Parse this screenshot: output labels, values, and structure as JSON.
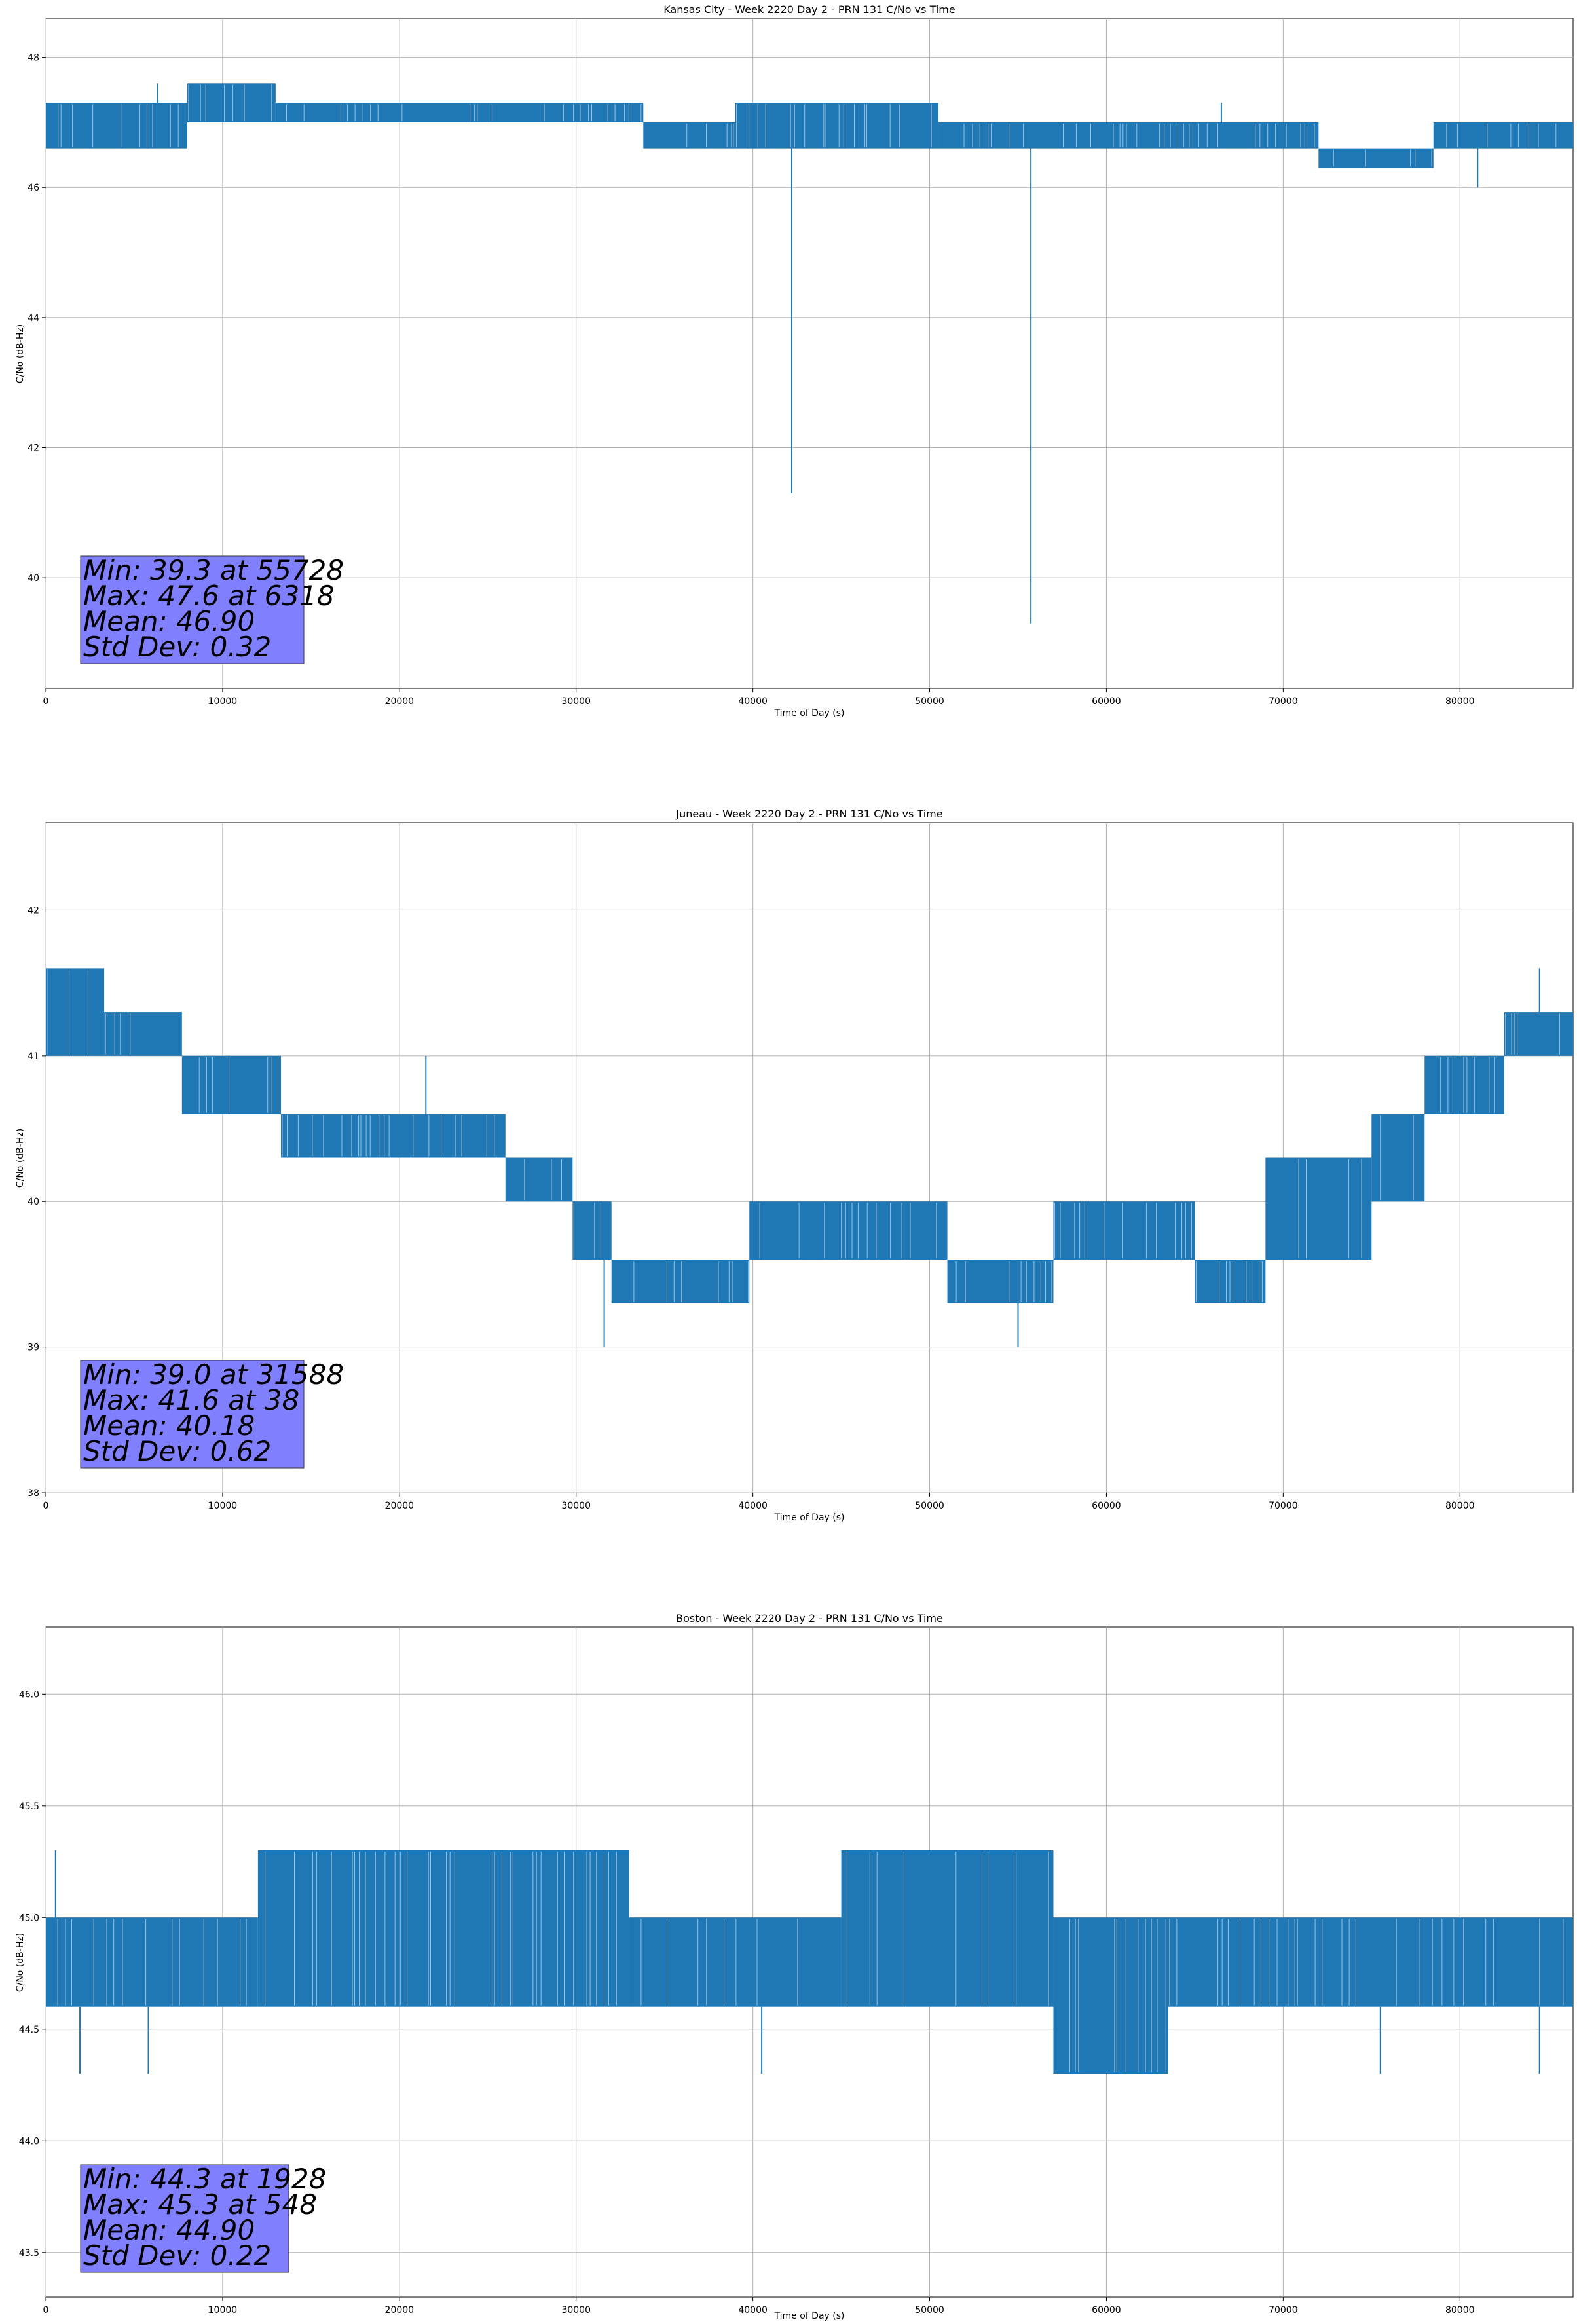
{
  "chart_data": [
    {
      "type": "line",
      "title": "Kansas City - Week 2220 Day 2 - PRN 131 C/No vs Time",
      "xlabel": "Time of Day (s)",
      "ylabel": "C/No (dB-Hz)",
      "xlim": [
        0,
        86400
      ],
      "ylim": [
        38.3,
        48.6
      ],
      "xticks": [
        0,
        10000,
        20000,
        30000,
        40000,
        50000,
        60000,
        70000,
        80000
      ],
      "yticks": [
        40,
        42,
        44,
        46,
        48
      ],
      "ytick_decimals": 0,
      "grid": true,
      "color": "#1f77b4",
      "stats": [
        "Min: 39.3 at 55728",
        "Max: 47.6 at 6318",
        "Mean: 46.90",
        "Std Dev: 0.32"
      ],
      "stats_box": {
        "color": "#8080ff",
        "placement": "bottom-left"
      },
      "series": [
        {
          "segments": [
            {
              "x": [
                0,
                8000
              ],
              "low": 46.6,
              "high": 47.3
            },
            {
              "x": [
                8000,
                13000
              ],
              "low": 47.0,
              "high": 47.6
            },
            {
              "x": [
                13000,
                33800
              ],
              "low": 47.0,
              "high": 47.3
            },
            {
              "x": [
                33800,
                39000
              ],
              "low": 46.6,
              "high": 47.0
            },
            {
              "x": [
                39000,
                50500
              ],
              "low": 46.6,
              "high": 47.3
            },
            {
              "x": [
                50500,
                52000
              ],
              "low": 46.6,
              "high": 47.0
            },
            {
              "x": [
                52000,
                72000
              ],
              "low": 46.6,
              "high": 47.0
            },
            {
              "x": [
                72000,
                78500
              ],
              "low": 46.3,
              "high": 46.6
            },
            {
              "x": [
                78500,
                86400
              ],
              "low": 46.6,
              "high": 47.0
            }
          ],
          "outliers": [
            {
              "x": 6318,
              "y": 47.6
            },
            {
              "x": 42200,
              "y": 41.3
            },
            {
              "x": 55728,
              "y": 39.3
            },
            {
              "x": 66500,
              "y": 47.3
            },
            {
              "x": 81000,
              "y": 46.0
            }
          ]
        }
      ]
    },
    {
      "type": "line",
      "title": "Juneau - Week 2220 Day 2 - PRN 131 C/No vs Time",
      "xlabel": "Time of Day (s)",
      "ylabel": "C/No (dB-Hz)",
      "xlim": [
        0,
        86400
      ],
      "ylim": [
        38.0,
        42.6
      ],
      "xticks": [
        0,
        10000,
        20000,
        30000,
        40000,
        50000,
        60000,
        70000,
        80000
      ],
      "yticks": [
        38,
        39,
        40,
        41,
        42
      ],
      "ytick_decimals": 0,
      "grid": true,
      "color": "#1f77b4",
      "stats": [
        "Min: 39.0 at 31588",
        "Max: 41.6 at 38",
        "Mean: 40.18",
        "Std Dev: 0.62"
      ],
      "stats_box": {
        "color": "#8080ff",
        "placement": "bottom-left"
      },
      "series": [
        {
          "segments": [
            {
              "x": [
                0,
                3300
              ],
              "low": 41.0,
              "high": 41.6
            },
            {
              "x": [
                3300,
                7700
              ],
              "low": 41.0,
              "high": 41.3
            },
            {
              "x": [
                7700,
                13300
              ],
              "low": 40.6,
              "high": 41.0
            },
            {
              "x": [
                13300,
                26000
              ],
              "low": 40.3,
              "high": 40.6
            },
            {
              "x": [
                26000,
                29800
              ],
              "low": 40.0,
              "high": 40.3
            },
            {
              "x": [
                29800,
                32000
              ],
              "low": 39.6,
              "high": 40.0
            },
            {
              "x": [
                32000,
                39800
              ],
              "low": 39.3,
              "high": 39.6
            },
            {
              "x": [
                39800,
                51000
              ],
              "low": 39.6,
              "high": 40.0
            },
            {
              "x": [
                51000,
                57000
              ],
              "low": 39.3,
              "high": 39.6
            },
            {
              "x": [
                57000,
                65000
              ],
              "low": 39.6,
              "high": 40.0
            },
            {
              "x": [
                65000,
                69000
              ],
              "low": 39.3,
              "high": 39.6
            },
            {
              "x": [
                69000,
                75000
              ],
              "low": 39.6,
              "high": 40.3
            },
            {
              "x": [
                75000,
                78000
              ],
              "low": 40.0,
              "high": 40.6
            },
            {
              "x": [
                78000,
                82500
              ],
              "low": 40.6,
              "high": 41.0
            },
            {
              "x": [
                82500,
                86400
              ],
              "low": 41.0,
              "high": 41.3
            }
          ],
          "outliers": [
            {
              "x": 38,
              "y": 41.6
            },
            {
              "x": 21500,
              "y": 41.0
            },
            {
              "x": 31588,
              "y": 39.0
            },
            {
              "x": 55000,
              "y": 39.0
            },
            {
              "x": 84500,
              "y": 41.6
            }
          ]
        }
      ]
    },
    {
      "type": "line",
      "title": "Boston - Week 2220 Day 2 - PRN 131 C/No vs Time",
      "xlabel": "Time of Day (s)",
      "ylabel": "C/No (dB-Hz)",
      "xlim": [
        0,
        86400
      ],
      "ylim": [
        43.3,
        46.3
      ],
      "xticks": [
        0,
        10000,
        20000,
        30000,
        40000,
        50000,
        60000,
        70000,
        80000
      ],
      "yticks": [
        43.5,
        44.0,
        44.5,
        45.0,
        45.5,
        46.0
      ],
      "ytick_decimals": 1,
      "grid": true,
      "color": "#1f77b4",
      "stats": [
        "Min: 44.3 at 1928",
        "Max: 45.3 at 548",
        "Mean: 44.90",
        "Std Dev: 0.22"
      ],
      "stats_box": {
        "color": "#8080ff",
        "placement": "bottom-left"
      },
      "series": [
        {
          "segments": [
            {
              "x": [
                0,
                12000
              ],
              "low": 44.6,
              "high": 45.0
            },
            {
              "x": [
                12000,
                33000
              ],
              "low": 44.6,
              "high": 45.3
            },
            {
              "x": [
                33000,
                45000
              ],
              "low": 44.6,
              "high": 45.0
            },
            {
              "x": [
                45000,
                57000
              ],
              "low": 44.6,
              "high": 45.3
            },
            {
              "x": [
                57000,
                63500
              ],
              "low": 44.3,
              "high": 45.0
            },
            {
              "x": [
                63500,
                86400
              ],
              "low": 44.6,
              "high": 45.0
            }
          ],
          "outliers": [
            {
              "x": 548,
              "y": 45.3
            },
            {
              "x": 1928,
              "y": 44.3
            },
            {
              "x": 5800,
              "y": 44.3
            },
            {
              "x": 40500,
              "y": 44.3
            },
            {
              "x": 75500,
              "y": 44.3
            },
            {
              "x": 84500,
              "y": 44.3
            }
          ]
        }
      ]
    }
  ]
}
